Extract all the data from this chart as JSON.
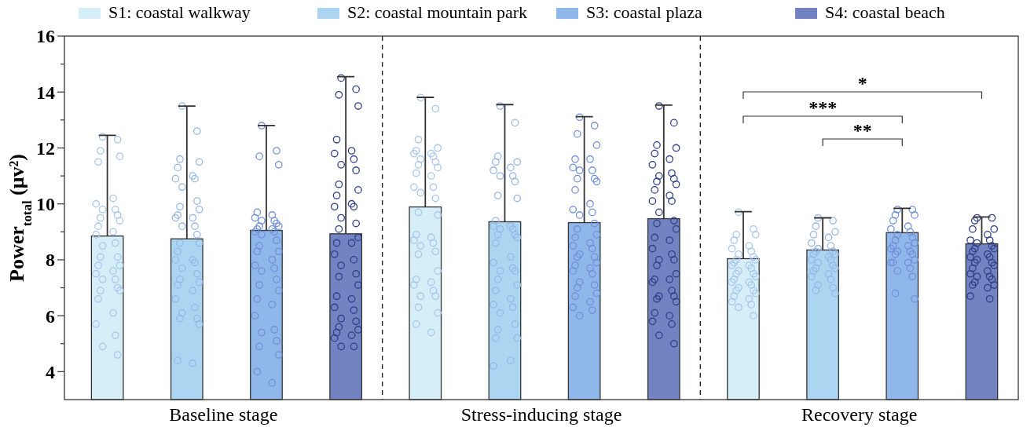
{
  "chart_data": {
    "type": "bar",
    "categories": [
      "Baseline stage",
      "Stress-inducing stage",
      "Recovery stage"
    ],
    "ylabel": "Power$_{total}$ (μv²)",
    "ylim": [
      3,
      16
    ],
    "yticks": [
      4,
      {
        "value": 5,
        "label": null
      },
      6,
      {
        "value": 7,
        "label": null
      },
      8,
      {
        "value": 9,
        "label": null
      },
      10,
      {
        "value": 11,
        "label": null
      },
      12,
      {
        "value": 13,
        "label": null
      },
      14,
      {
        "value": 15,
        "label": null
      },
      16
    ],
    "legend": "top",
    "marker": "circle",
    "series": [
      {
        "name": "S1: coastal walkway",
        "color": "#d5eef7",
        "values": [
          8.85,
          9.89,
          8.04
        ],
        "errors": [
          [
            8.85,
            12.45
          ],
          [
            9.89,
            13.81
          ],
          [
            8.04,
            9.72
          ]
        ]
      },
      {
        "name": "S2: coastal mountain park",
        "color": "#acd5f2",
        "values": [
          8.75,
          9.36,
          8.35
        ],
        "errors": [
          [
            8.75,
            13.5
          ],
          [
            9.36,
            13.55
          ],
          [
            8.35,
            9.5
          ]
        ]
      },
      {
        "name": "S3: coastal plaza",
        "color": "#8fb7ea",
        "values": [
          9.05,
          9.33,
          8.97
        ],
        "errors": [
          [
            9.05,
            12.8
          ],
          [
            9.33,
            13.12
          ],
          [
            8.97,
            9.84
          ]
        ]
      },
      {
        "name": "S4: coastal beach",
        "color": "#7283c2",
        "values": [
          8.93,
          9.47,
          8.57
        ],
        "errors": [
          [
            8.93,
            14.55
          ],
          [
            9.47,
            13.53
          ],
          [
            8.57,
            9.53
          ]
        ]
      },
      {
        "type": "scatter",
        "color": "#a9c6ec",
        "x": [
          "Baseline stage",
          "Baseline stage",
          "Baseline stage",
          "Baseline stage",
          "Baseline stage",
          "Baseline stage",
          "Baseline stage",
          "Baseline stage",
          "Baseline stage",
          "Baseline stage",
          "Baseline stage",
          "Baseline stage",
          "Baseline stage",
          "Baseline stage",
          "Baseline stage",
          "Baseline stage",
          "Baseline stage",
          "Baseline stage",
          "Baseline stage",
          "Baseline stage",
          "Baseline stage",
          "Baseline stage",
          "Baseline stage",
          "Baseline stage",
          "Baseline stage",
          "Baseline stage",
          "Baseline stage",
          "Baseline stage",
          "Baseline stage",
          "Baseline stage",
          "Baseline stage",
          "Baseline stage",
          "Baseline stage",
          "Baseline stage",
          "Stress-inducing stage",
          "Stress-inducing stage",
          "Stress-inducing stage",
          "Stress-inducing stage",
          "Stress-inducing stage",
          "Stress-inducing stage",
          "Stress-inducing stage",
          "Stress-inducing stage",
          "Stress-inducing stage",
          "Stress-inducing stage",
          "Stress-inducing stage",
          "Stress-inducing stage",
          "Stress-inducing stage",
          "Stress-inducing stage",
          "Stress-inducing stage",
          "Stress-inducing stage",
          "Stress-inducing stage",
          "Stress-inducing stage",
          "Stress-inducing stage",
          "Stress-inducing stage",
          "Stress-inducing stage",
          "Stress-inducing stage",
          "Stress-inducing stage",
          "Stress-inducing stage",
          "Stress-inducing stage",
          "Stress-inducing stage",
          "Stress-inducing stage",
          "Stress-inducing stage",
          "Stress-inducing stage",
          "Stress-inducing stage",
          "Stress-inducing stage",
          "Stress-inducing stage",
          "Stress-inducing stage",
          "Stress-inducing stage",
          "Stress-inducing stage",
          "Stress-inducing stage",
          "Stress-inducing stage",
          "Stress-inducing stage",
          "Recovery stage",
          "Recovery stage",
          "Recovery stage",
          "Recovery stage",
          "Recovery stage",
          "Recovery stage",
          "Recovery stage",
          "Recovery stage",
          "Recovery stage",
          "Recovery stage",
          "Recovery stage",
          "Recovery stage",
          "Recovery stage",
          "Recovery stage",
          "Recovery stage",
          "Recovery stage",
          "Recovery stage",
          "Recovery stage",
          "Recovery stage",
          "Recovery stage",
          "Recovery stage",
          "Recovery stage",
          "Recovery stage",
          "Recovery stage",
          "Recovery stage",
          "Recovery stage",
          "Recovery stage",
          "Recovery stage",
          "Recovery stage",
          "Recovery stage",
          "Recovery stage",
          "Recovery stage",
          "Recovery stage",
          "Recovery stage"
        ],
        "values": [
          12.4,
          12.3,
          11.9,
          11.7,
          11.5,
          10.2,
          10.0,
          9.8,
          9.8,
          9.6,
          9.5,
          9.4,
          9.2,
          9.0,
          8.9,
          8.6,
          8.5,
          8.1,
          8.1,
          7.8,
          7.8,
          7.6,
          7.5,
          7.3,
          7.3,
          7.0,
          6.9,
          6.9,
          6.6,
          6.1,
          5.7,
          5.3,
          4.9,
          4.6,
          13.8,
          13.4,
          12.3,
          12.0,
          11.9,
          11.8,
          11.8,
          11.7,
          11.6,
          11.5,
          11.4,
          11.3,
          11.1,
          11.0,
          10.6,
          10.6,
          10.4,
          10.2,
          9.7,
          9.6,
          8.9,
          8.8,
          8.7,
          8.6,
          8.5,
          8.3,
          8.2,
          7.6,
          7.3,
          7.2,
          7.1,
          6.9,
          6.7,
          6.7,
          6.3,
          6.1,
          5.7,
          5.4,
          9.7,
          9.1,
          8.9,
          8.9,
          8.7,
          8.5,
          8.4,
          8.3,
          8.2,
          8.1,
          8.0,
          8.0,
          7.9,
          7.8,
          7.8,
          7.7,
          7.6,
          7.5,
          7.5,
          7.4,
          7.3,
          7.2,
          7.2,
          7.1,
          7.0,
          6.9,
          6.9,
          6.8,
          6.7,
          6.6,
          6.5,
          6.4,
          6.3,
          6.0
        ]
      },
      {
        "type": "scatter",
        "color": "#97b8e6",
        "x": [
          "Baseline stage",
          "Baseline stage",
          "Baseline stage",
          "Baseline stage",
          "Baseline stage",
          "Baseline stage",
          "Baseline stage",
          "Baseline stage",
          "Baseline stage",
          "Baseline stage",
          "Baseline stage",
          "Baseline stage",
          "Baseline stage",
          "Baseline stage",
          "Baseline stage",
          "Baseline stage",
          "Baseline stage",
          "Baseline stage",
          "Baseline stage",
          "Baseline stage",
          "Baseline stage",
          "Baseline stage",
          "Baseline stage",
          "Baseline stage",
          "Baseline stage",
          "Baseline stage",
          "Baseline stage",
          "Baseline stage",
          "Baseline stage",
          "Baseline stage",
          "Baseline stage",
          "Baseline stage",
          "Baseline stage",
          "Baseline stage",
          "Baseline stage",
          "Baseline stage",
          "Baseline stage",
          "Baseline stage",
          "Stress-inducing stage",
          "Stress-inducing stage",
          "Stress-inducing stage",
          "Stress-inducing stage",
          "Stress-inducing stage",
          "Stress-inducing stage",
          "Stress-inducing stage",
          "Stress-inducing stage",
          "Stress-inducing stage",
          "Stress-inducing stage",
          "Stress-inducing stage",
          "Stress-inducing stage",
          "Stress-inducing stage",
          "Stress-inducing stage",
          "Stress-inducing stage",
          "Stress-inducing stage",
          "Stress-inducing stage",
          "Stress-inducing stage",
          "Stress-inducing stage",
          "Stress-inducing stage",
          "Stress-inducing stage",
          "Stress-inducing stage",
          "Stress-inducing stage",
          "Stress-inducing stage",
          "Stress-inducing stage",
          "Stress-inducing stage",
          "Stress-inducing stage",
          "Stress-inducing stage",
          "Stress-inducing stage",
          "Stress-inducing stage",
          "Stress-inducing stage",
          "Stress-inducing stage",
          "Stress-inducing stage",
          "Stress-inducing stage",
          "Stress-inducing stage",
          "Stress-inducing stage",
          "Stress-inducing stage",
          "Stress-inducing stage",
          "Stress-inducing stage",
          "Recovery stage",
          "Recovery stage",
          "Recovery stage",
          "Recovery stage",
          "Recovery stage",
          "Recovery stage",
          "Recovery stage",
          "Recovery stage",
          "Recovery stage",
          "Recovery stage",
          "Recovery stage",
          "Recovery stage",
          "Recovery stage",
          "Recovery stage",
          "Recovery stage",
          "Recovery stage",
          "Recovery stage",
          "Recovery stage",
          "Recovery stage",
          "Recovery stage",
          "Recovery stage",
          "Recovery stage",
          "Recovery stage",
          "Recovery stage",
          "Recovery stage",
          "Recovery stage",
          "Recovery stage",
          "Recovery stage"
        ],
        "values": [
          13.5,
          12.6,
          11.6,
          11.5,
          11.3,
          11.0,
          10.9,
          10.9,
          10.6,
          10.1,
          9.9,
          9.8,
          9.6,
          9.5,
          9.5,
          9.2,
          9.2,
          8.9,
          8.6,
          8.6,
          8.3,
          8.0,
          8.0,
          7.9,
          7.7,
          7.5,
          7.3,
          7.2,
          7.1,
          6.9,
          6.6,
          6.3,
          6.1,
          5.9,
          5.9,
          5.7,
          4.4,
          4.3,
          13.5,
          12.9,
          11.7,
          11.5,
          11.5,
          11.3,
          11.2,
          11.0,
          11.0,
          10.8,
          10.3,
          10.2,
          9.4,
          9.2,
          9.2,
          9.1,
          9.1,
          8.9,
          8.9,
          8.8,
          8.6,
          8.1,
          7.9,
          7.7,
          7.6,
          7.6,
          7.3,
          7.1,
          6.9,
          6.6,
          6.4,
          6.3,
          6.1,
          5.7,
          5.5,
          5.2,
          5.2,
          4.4,
          4.2,
          9.5,
          9.4,
          9.2,
          9.0,
          8.9,
          8.8,
          8.6,
          8.5,
          8.4,
          8.3,
          8.3,
          8.2,
          8.2,
          8.1,
          8.0,
          8.0,
          7.9,
          7.8,
          7.7,
          7.7,
          7.6,
          7.5,
          7.4,
          7.3,
          7.1,
          7.0,
          6.9,
          6.8
        ]
      },
      {
        "type": "scatter",
        "color": "#7190d8",
        "x": [
          "Baseline stage",
          "Baseline stage",
          "Baseline stage",
          "Baseline stage",
          "Baseline stage",
          "Baseline stage",
          "Baseline stage",
          "Baseline stage",
          "Baseline stage",
          "Baseline stage",
          "Baseline stage",
          "Baseline stage",
          "Baseline stage",
          "Baseline stage",
          "Baseline stage",
          "Baseline stage",
          "Baseline stage",
          "Baseline stage",
          "Baseline stage",
          "Baseline stage",
          "Baseline stage",
          "Baseline stage",
          "Baseline stage",
          "Baseline stage",
          "Baseline stage",
          "Baseline stage",
          "Baseline stage",
          "Baseline stage",
          "Baseline stage",
          "Baseline stage",
          "Baseline stage",
          "Baseline stage",
          "Baseline stage",
          "Baseline stage",
          "Baseline stage",
          "Baseline stage",
          "Baseline stage",
          "Baseline stage",
          "Stress-inducing stage",
          "Stress-inducing stage",
          "Stress-inducing stage",
          "Stress-inducing stage",
          "Stress-inducing stage",
          "Stress-inducing stage",
          "Stress-inducing stage",
          "Stress-inducing stage",
          "Stress-inducing stage",
          "Stress-inducing stage",
          "Stress-inducing stage",
          "Stress-inducing stage",
          "Stress-inducing stage",
          "Stress-inducing stage",
          "Stress-inducing stage",
          "Stress-inducing stage",
          "Stress-inducing stage",
          "Stress-inducing stage",
          "Stress-inducing stage",
          "Stress-inducing stage",
          "Stress-inducing stage",
          "Stress-inducing stage",
          "Stress-inducing stage",
          "Stress-inducing stage",
          "Stress-inducing stage",
          "Stress-inducing stage",
          "Stress-inducing stage",
          "Stress-inducing stage",
          "Stress-inducing stage",
          "Stress-inducing stage",
          "Stress-inducing stage",
          "Stress-inducing stage",
          "Stress-inducing stage",
          "Stress-inducing stage",
          "Stress-inducing stage",
          "Stress-inducing stage",
          "Stress-inducing stage",
          "Stress-inducing stage",
          "Stress-inducing stage",
          "Stress-inducing stage",
          "Stress-inducing stage",
          "Recovery stage",
          "Recovery stage",
          "Recovery stage",
          "Recovery stage",
          "Recovery stage",
          "Recovery stage",
          "Recovery stage",
          "Recovery stage",
          "Recovery stage",
          "Recovery stage",
          "Recovery stage",
          "Recovery stage",
          "Recovery stage",
          "Recovery stage",
          "Recovery stage",
          "Recovery stage",
          "Recovery stage",
          "Recovery stage",
          "Recovery stage",
          "Recovery stage",
          "Recovery stage",
          "Recovery stage",
          "Recovery stage",
          "Recovery stage",
          "Recovery stage",
          "Recovery stage",
          "Recovery stage",
          "Recovery stage"
        ],
        "values": [
          12.8,
          11.9,
          11.7,
          11.4,
          9.7,
          9.6,
          9.5,
          9.4,
          9.4,
          9.3,
          9.2,
          9.2,
          9.1,
          9.1,
          9.0,
          9.0,
          8.9,
          8.7,
          8.5,
          8.3,
          8.3,
          8.0,
          7.8,
          7.7,
          7.6,
          7.3,
          7.1,
          6.9,
          6.6,
          6.4,
          6.0,
          5.5,
          5.4,
          5.1,
          4.9,
          4.6,
          4.0,
          3.6,
          13.1,
          12.8,
          12.5,
          12.1,
          11.6,
          11.6,
          11.3,
          11.2,
          11.2,
          10.9,
          10.9,
          10.8,
          10.5,
          10.0,
          9.8,
          9.7,
          9.6,
          9.3,
          9.1,
          8.9,
          8.8,
          8.6,
          8.5,
          8.4,
          8.2,
          8.1,
          8.1,
          7.9,
          7.8,
          7.7,
          7.6,
          7.5,
          7.2,
          7.1,
          7.0,
          6.8,
          6.7,
          6.5,
          6.3,
          6.2,
          6.0,
          9.8,
          9.8,
          9.6,
          9.6,
          9.4,
          9.2,
          9.1,
          9.0,
          8.9,
          8.8,
          8.7,
          8.6,
          8.5,
          8.5,
          8.4,
          8.3,
          8.3,
          8.2,
          8.2,
          8.0,
          7.9,
          7.9,
          7.9,
          7.7,
          7.6,
          7.4,
          6.8,
          6.6
        ]
      },
      {
        "type": "scatter",
        "color": "#2f3f86",
        "x": [
          "Baseline stage",
          "Baseline stage",
          "Baseline stage",
          "Baseline stage",
          "Baseline stage",
          "Baseline stage",
          "Baseline stage",
          "Baseline stage",
          "Baseline stage",
          "Baseline stage",
          "Baseline stage",
          "Baseline stage",
          "Baseline stage",
          "Baseline stage",
          "Baseline stage",
          "Baseline stage",
          "Baseline stage",
          "Baseline stage",
          "Baseline stage",
          "Baseline stage",
          "Baseline stage",
          "Baseline stage",
          "Baseline stage",
          "Baseline stage",
          "Baseline stage",
          "Baseline stage",
          "Baseline stage",
          "Baseline stage",
          "Baseline stage",
          "Baseline stage",
          "Baseline stage",
          "Baseline stage",
          "Baseline stage",
          "Baseline stage",
          "Baseline stage",
          "Baseline stage",
          "Baseline stage",
          "Baseline stage",
          "Baseline stage",
          "Baseline stage",
          "Baseline stage",
          "Stress-inducing stage",
          "Stress-inducing stage",
          "Stress-inducing stage",
          "Stress-inducing stage",
          "Stress-inducing stage",
          "Stress-inducing stage",
          "Stress-inducing stage",
          "Stress-inducing stage",
          "Stress-inducing stage",
          "Stress-inducing stage",
          "Stress-inducing stage",
          "Stress-inducing stage",
          "Stress-inducing stage",
          "Stress-inducing stage",
          "Stress-inducing stage",
          "Stress-inducing stage",
          "Stress-inducing stage",
          "Stress-inducing stage",
          "Stress-inducing stage",
          "Stress-inducing stage",
          "Stress-inducing stage",
          "Stress-inducing stage",
          "Stress-inducing stage",
          "Stress-inducing stage",
          "Stress-inducing stage",
          "Stress-inducing stage",
          "Stress-inducing stage",
          "Stress-inducing stage",
          "Stress-inducing stage",
          "Stress-inducing stage",
          "Stress-inducing stage",
          "Stress-inducing stage",
          "Stress-inducing stage",
          "Stress-inducing stage",
          "Stress-inducing stage",
          "Stress-inducing stage",
          "Stress-inducing stage",
          "Stress-inducing stage",
          "Stress-inducing stage",
          "Stress-inducing stage",
          "Stress-inducing stage",
          "Stress-inducing stage",
          "Recovery stage",
          "Recovery stage",
          "Recovery stage",
          "Recovery stage",
          "Recovery stage",
          "Recovery stage",
          "Recovery stage",
          "Recovery stage",
          "Recovery stage",
          "Recovery stage",
          "Recovery stage",
          "Recovery stage",
          "Recovery stage",
          "Recovery stage",
          "Recovery stage",
          "Recovery stage",
          "Recovery stage",
          "Recovery stage",
          "Recovery stage",
          "Recovery stage",
          "Recovery stage",
          "Recovery stage",
          "Recovery stage",
          "Recovery stage",
          "Recovery stage",
          "Recovery stage",
          "Recovery stage",
          "Recovery stage",
          "Recovery stage",
          "Recovery stage",
          "Recovery stage",
          "Recovery stage"
        ],
        "values": [
          14.5,
          14.1,
          13.9,
          13.5,
          12.3,
          11.9,
          11.8,
          11.6,
          11.4,
          11.2,
          10.7,
          10.5,
          10.3,
          10.0,
          9.9,
          9.9,
          9.5,
          9.3,
          9.1,
          8.8,
          8.6,
          8.6,
          8.2,
          8.0,
          7.8,
          7.5,
          7.4,
          7.1,
          6.7,
          6.6,
          6.3,
          6.2,
          5.9,
          5.8,
          5.6,
          5.5,
          5.4,
          5.3,
          5.2,
          4.9,
          4.9,
          13.5,
          12.9,
          12.1,
          12.0,
          11.8,
          11.6,
          11.4,
          11.1,
          11.0,
          10.9,
          10.8,
          10.7,
          10.5,
          10.3,
          10.1,
          10.1,
          9.7,
          9.4,
          9.3,
          9.1,
          8.8,
          8.7,
          8.4,
          8.2,
          8.0,
          8.0,
          7.8,
          7.5,
          7.3,
          7.3,
          7.2,
          6.9,
          6.7,
          6.7,
          6.6,
          6.5,
          6.1,
          6.0,
          5.8,
          5.7,
          5.3,
          5.0,
          9.5,
          9.5,
          9.4,
          9.1,
          9.1,
          8.9,
          8.7,
          8.7,
          8.6,
          8.5,
          8.4,
          8.4,
          8.3,
          8.2,
          8.1,
          8.1,
          8.0,
          7.9,
          7.9,
          7.8,
          7.7,
          7.6,
          7.5,
          7.4,
          7.4,
          7.3,
          7.2,
          7.1,
          7.1,
          7.0,
          6.7,
          6.6
        ]
      }
    ],
    "annotations": [
      "*",
      "***",
      "**"
    ]
  }
}
